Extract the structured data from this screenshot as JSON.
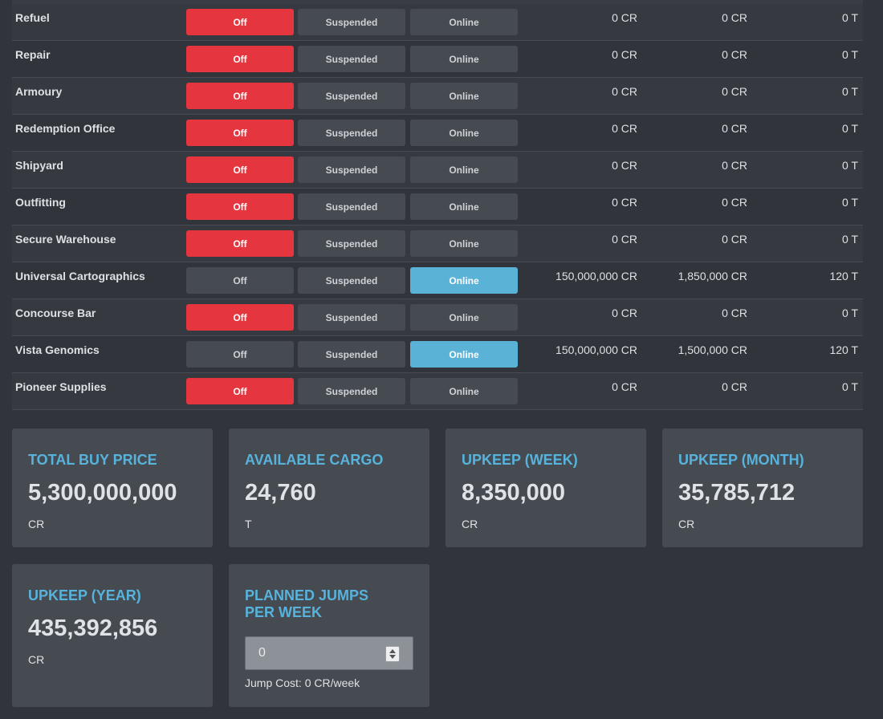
{
  "buttons": {
    "off": "Off",
    "suspended": "Suspended",
    "online": "Online"
  },
  "modules": [
    {
      "name": "Refuel",
      "state": "Off",
      "buy": "0 CR",
      "upkeep": "0 CR",
      "cargo": "0 T"
    },
    {
      "name": "Repair",
      "state": "Off",
      "buy": "0 CR",
      "upkeep": "0 CR",
      "cargo": "0 T"
    },
    {
      "name": "Armoury",
      "state": "Off",
      "buy": "0 CR",
      "upkeep": "0 CR",
      "cargo": "0 T"
    },
    {
      "name": "Redemption Office",
      "state": "Off",
      "buy": "0 CR",
      "upkeep": "0 CR",
      "cargo": "0 T"
    },
    {
      "name": "Shipyard",
      "state": "Off",
      "buy": "0 CR",
      "upkeep": "0 CR",
      "cargo": "0 T"
    },
    {
      "name": "Outfitting",
      "state": "Off",
      "buy": "0 CR",
      "upkeep": "0 CR",
      "cargo": "0 T"
    },
    {
      "name": "Secure Warehouse",
      "state": "Off",
      "buy": "0 CR",
      "upkeep": "0 CR",
      "cargo": "0 T"
    },
    {
      "name": "Universal Cartographics",
      "state": "Online",
      "buy": "150,000,000 CR",
      "upkeep": "1,850,000 CR",
      "cargo": "120 T"
    },
    {
      "name": "Concourse Bar",
      "state": "Off",
      "buy": "0 CR",
      "upkeep": "0 CR",
      "cargo": "0 T"
    },
    {
      "name": "Vista Genomics",
      "state": "Online",
      "buy": "150,000,000 CR",
      "upkeep": "1,500,000 CR",
      "cargo": "120 T"
    },
    {
      "name": "Pioneer Supplies",
      "state": "Off",
      "buy": "0 CR",
      "upkeep": "0 CR",
      "cargo": "0 T"
    }
  ],
  "summary": {
    "total_buy_price": {
      "title": "TOTAL BUY PRICE",
      "value": "5,300,000,000",
      "unit": "CR"
    },
    "available_cargo": {
      "title": "AVAILABLE CARGO",
      "value": "24,760",
      "unit": "T"
    },
    "upkeep_week": {
      "title": "UPKEEP (WEEK)",
      "value": "8,350,000",
      "unit": "CR"
    },
    "upkeep_month": {
      "title": "UPKEEP (MONTH)",
      "value": "35,785,712",
      "unit": "CR"
    },
    "upkeep_year": {
      "title": "UPKEEP (YEAR)",
      "value": "435,392,856",
      "unit": "CR"
    },
    "planned_jumps": {
      "title_line1": "PLANNED JUMPS",
      "title_line2": "PER WEEK",
      "value": "0",
      "jump_cost": "Jump Cost: 0 CR/week"
    }
  },
  "colors": {
    "off_active": "#e5363f",
    "online_active": "#5ab3d6",
    "accent_title": "#57b3dc",
    "background": "#31343b",
    "card": "#464a51"
  }
}
